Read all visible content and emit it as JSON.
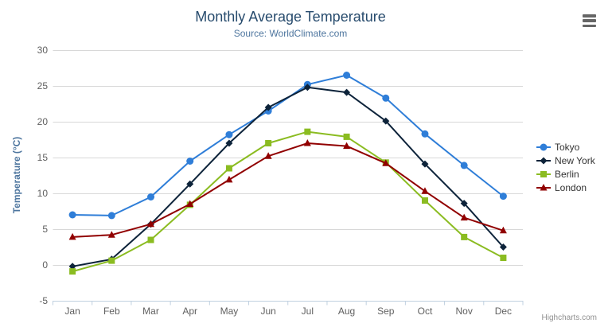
{
  "chart_data": {
    "type": "line",
    "title": "Monthly Average Temperature",
    "subtitle": "Source: WorldClimate.com",
    "xlabel": "",
    "ylabel": "Temperature (°C)",
    "categories": [
      "Jan",
      "Feb",
      "Mar",
      "Apr",
      "May",
      "Jun",
      "Jul",
      "Aug",
      "Sep",
      "Oct",
      "Nov",
      "Dec"
    ],
    "ylim": [
      -5,
      30
    ],
    "ytick_step": 5,
    "grid": true,
    "legend_position": "right",
    "series": [
      {
        "name": "Tokyo",
        "color": "#2f7ed8",
        "marker": "circle",
        "values": [
          7.0,
          6.9,
          9.5,
          14.5,
          18.2,
          21.5,
          25.2,
          26.5,
          23.3,
          18.3,
          13.9,
          9.6
        ]
      },
      {
        "name": "New York",
        "color": "#0d233a",
        "marker": "diamond",
        "values": [
          -0.2,
          0.8,
          5.7,
          11.3,
          17.0,
          22.0,
          24.8,
          24.1,
          20.1,
          14.1,
          8.6,
          2.5
        ]
      },
      {
        "name": "Berlin",
        "color": "#8bbc21",
        "marker": "square",
        "values": [
          -0.9,
          0.6,
          3.5,
          8.4,
          13.5,
          17.0,
          18.6,
          17.9,
          14.3,
          9.0,
          3.9,
          1.0
        ]
      },
      {
        "name": "London",
        "color": "#910000",
        "marker": "triangle",
        "values": [
          3.9,
          4.2,
          5.7,
          8.5,
          11.9,
          15.2,
          17.0,
          16.6,
          14.2,
          10.3,
          6.6,
          4.8
        ]
      }
    ]
  },
  "credits": "Highcharts.com",
  "icons": {
    "context_menu": "menu-icon"
  },
  "colors": {
    "title": "#274b6d",
    "subtitle": "#4d759e",
    "axis_title": "#4d759e",
    "tick_label": "#606060",
    "grid": "#d8d8d8",
    "axis_line": "#c0d0e0",
    "legend_text": "#333333",
    "credits": "#909090",
    "menu_icon": "#666666"
  }
}
